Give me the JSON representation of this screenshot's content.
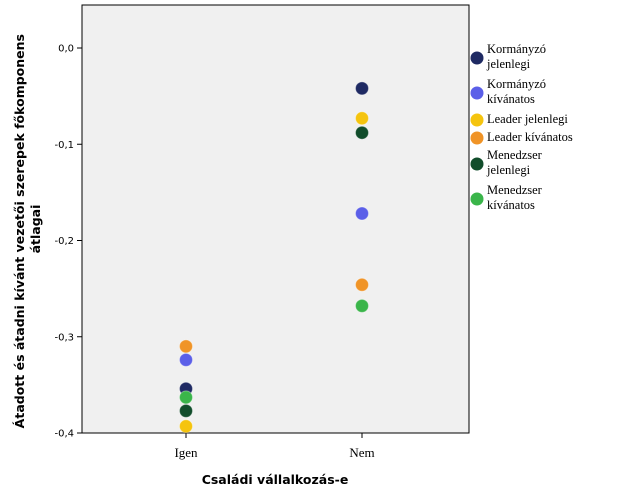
{
  "chart_data": {
    "type": "scatter",
    "xlabel": "Családi vállalkozás-e",
    "ylabel_lines": [
      "Átadott és átadni kívánt vezetői szerepek főkomponens",
      "átlagai"
    ],
    "categories": [
      "Igen",
      "Nem"
    ],
    "ylim": [
      -0.4,
      0.04
    ],
    "yticks": [
      0.0,
      -0.1,
      -0.2,
      -0.3,
      -0.4
    ],
    "ytick_labels": [
      "0,0",
      "-0,1",
      "-0,2",
      "-0,3",
      "-0,4"
    ],
    "grid": false,
    "series": [
      {
        "name": "Kormányzó jelenlegi",
        "legend_lines": [
          "Kormányzó",
          "jelenlegi"
        ],
        "color": "#1f2a63",
        "values": [
          -0.354,
          -0.042
        ]
      },
      {
        "name": "Kormányzó kívánatos",
        "legend_lines": [
          "Kormányzó",
          "kívánatos"
        ],
        "color": "#5b5fe8",
        "values": [
          -0.324,
          -0.172
        ]
      },
      {
        "name": "Leader jelenlegi",
        "legend_lines": [
          "Leader jelenlegi"
        ],
        "color": "#f5c40e",
        "values": [
          -0.393,
          -0.073
        ]
      },
      {
        "name": "Leader kívánatos",
        "legend_lines": [
          "Leader kívánatos"
        ],
        "color": "#f09427",
        "values": [
          -0.31,
          -0.246
        ]
      },
      {
        "name": "Menedzser jelenlegi",
        "legend_lines": [
          "Menedzser",
          "jelenlegi"
        ],
        "color": "#114d2b",
        "values": [
          -0.377,
          -0.088
        ]
      },
      {
        "name": "Menedzser kívánatos",
        "legend_lines": [
          "Menedzser",
          "kívánatos"
        ],
        "color": "#3ab54a",
        "values": [
          -0.363,
          -0.268
        ]
      }
    ]
  }
}
